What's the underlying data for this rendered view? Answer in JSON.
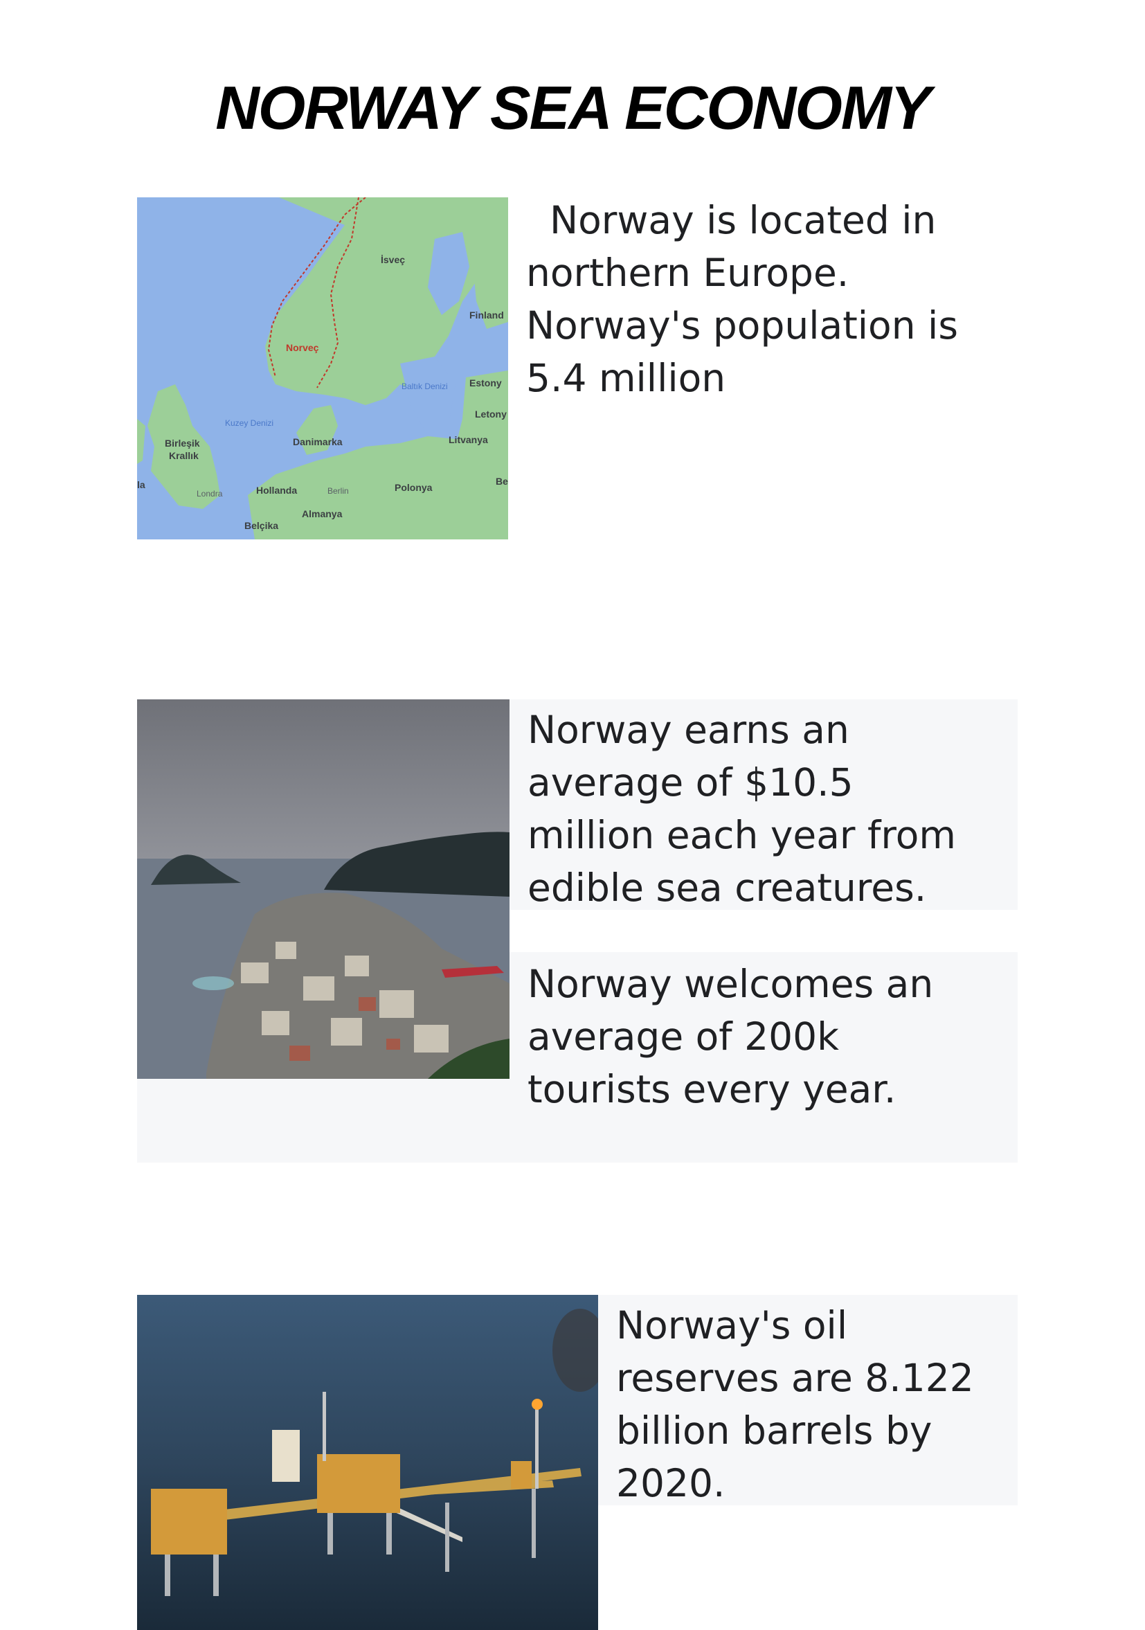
{
  "title": "NORWAY SEA ECONOMY",
  "section1": {
    "text_lines": [
      "Norway is located in",
      "northern Europe.",
      "Norway's population is",
      "5.4 million"
    ],
    "map": {
      "labels": {
        "isvec": "İsveç",
        "finland": "Finland",
        "norvec": "Norveç",
        "baltik": "Baltık Denizi",
        "estony": "Estony",
        "letony": "Letony",
        "kuzey": "Kuzey Denizi",
        "birlesik": "Birleşik",
        "krallik": "Krallık",
        "danimarka": "Danimarka",
        "litvanya": "Litvanya",
        "la": "la",
        "be": "Be",
        "londra": "Londra",
        "hollanda": "Hollanda",
        "berlin": "Berlin",
        "polonya": "Polonya",
        "almanya": "Almanya",
        "belcika": "Belçika"
      }
    }
  },
  "section2": {
    "earn_lines": [
      "Norway earns an",
      "average of $10.5",
      "million each year from",
      "edible sea creatures."
    ],
    "tour_lines": [
      "Norway welcomes an",
      "average of 200k",
      "tourists every year."
    ]
  },
  "section3": {
    "oil_lines": [
      "Norway's oil",
      "reserves are 8.122",
      "billion barrels by",
      "2020."
    ]
  },
  "colors": {
    "panel": "#f6f7f9",
    "sea": "#8fb3e8",
    "land": "#9ccf98",
    "border": "#c0392b"
  }
}
